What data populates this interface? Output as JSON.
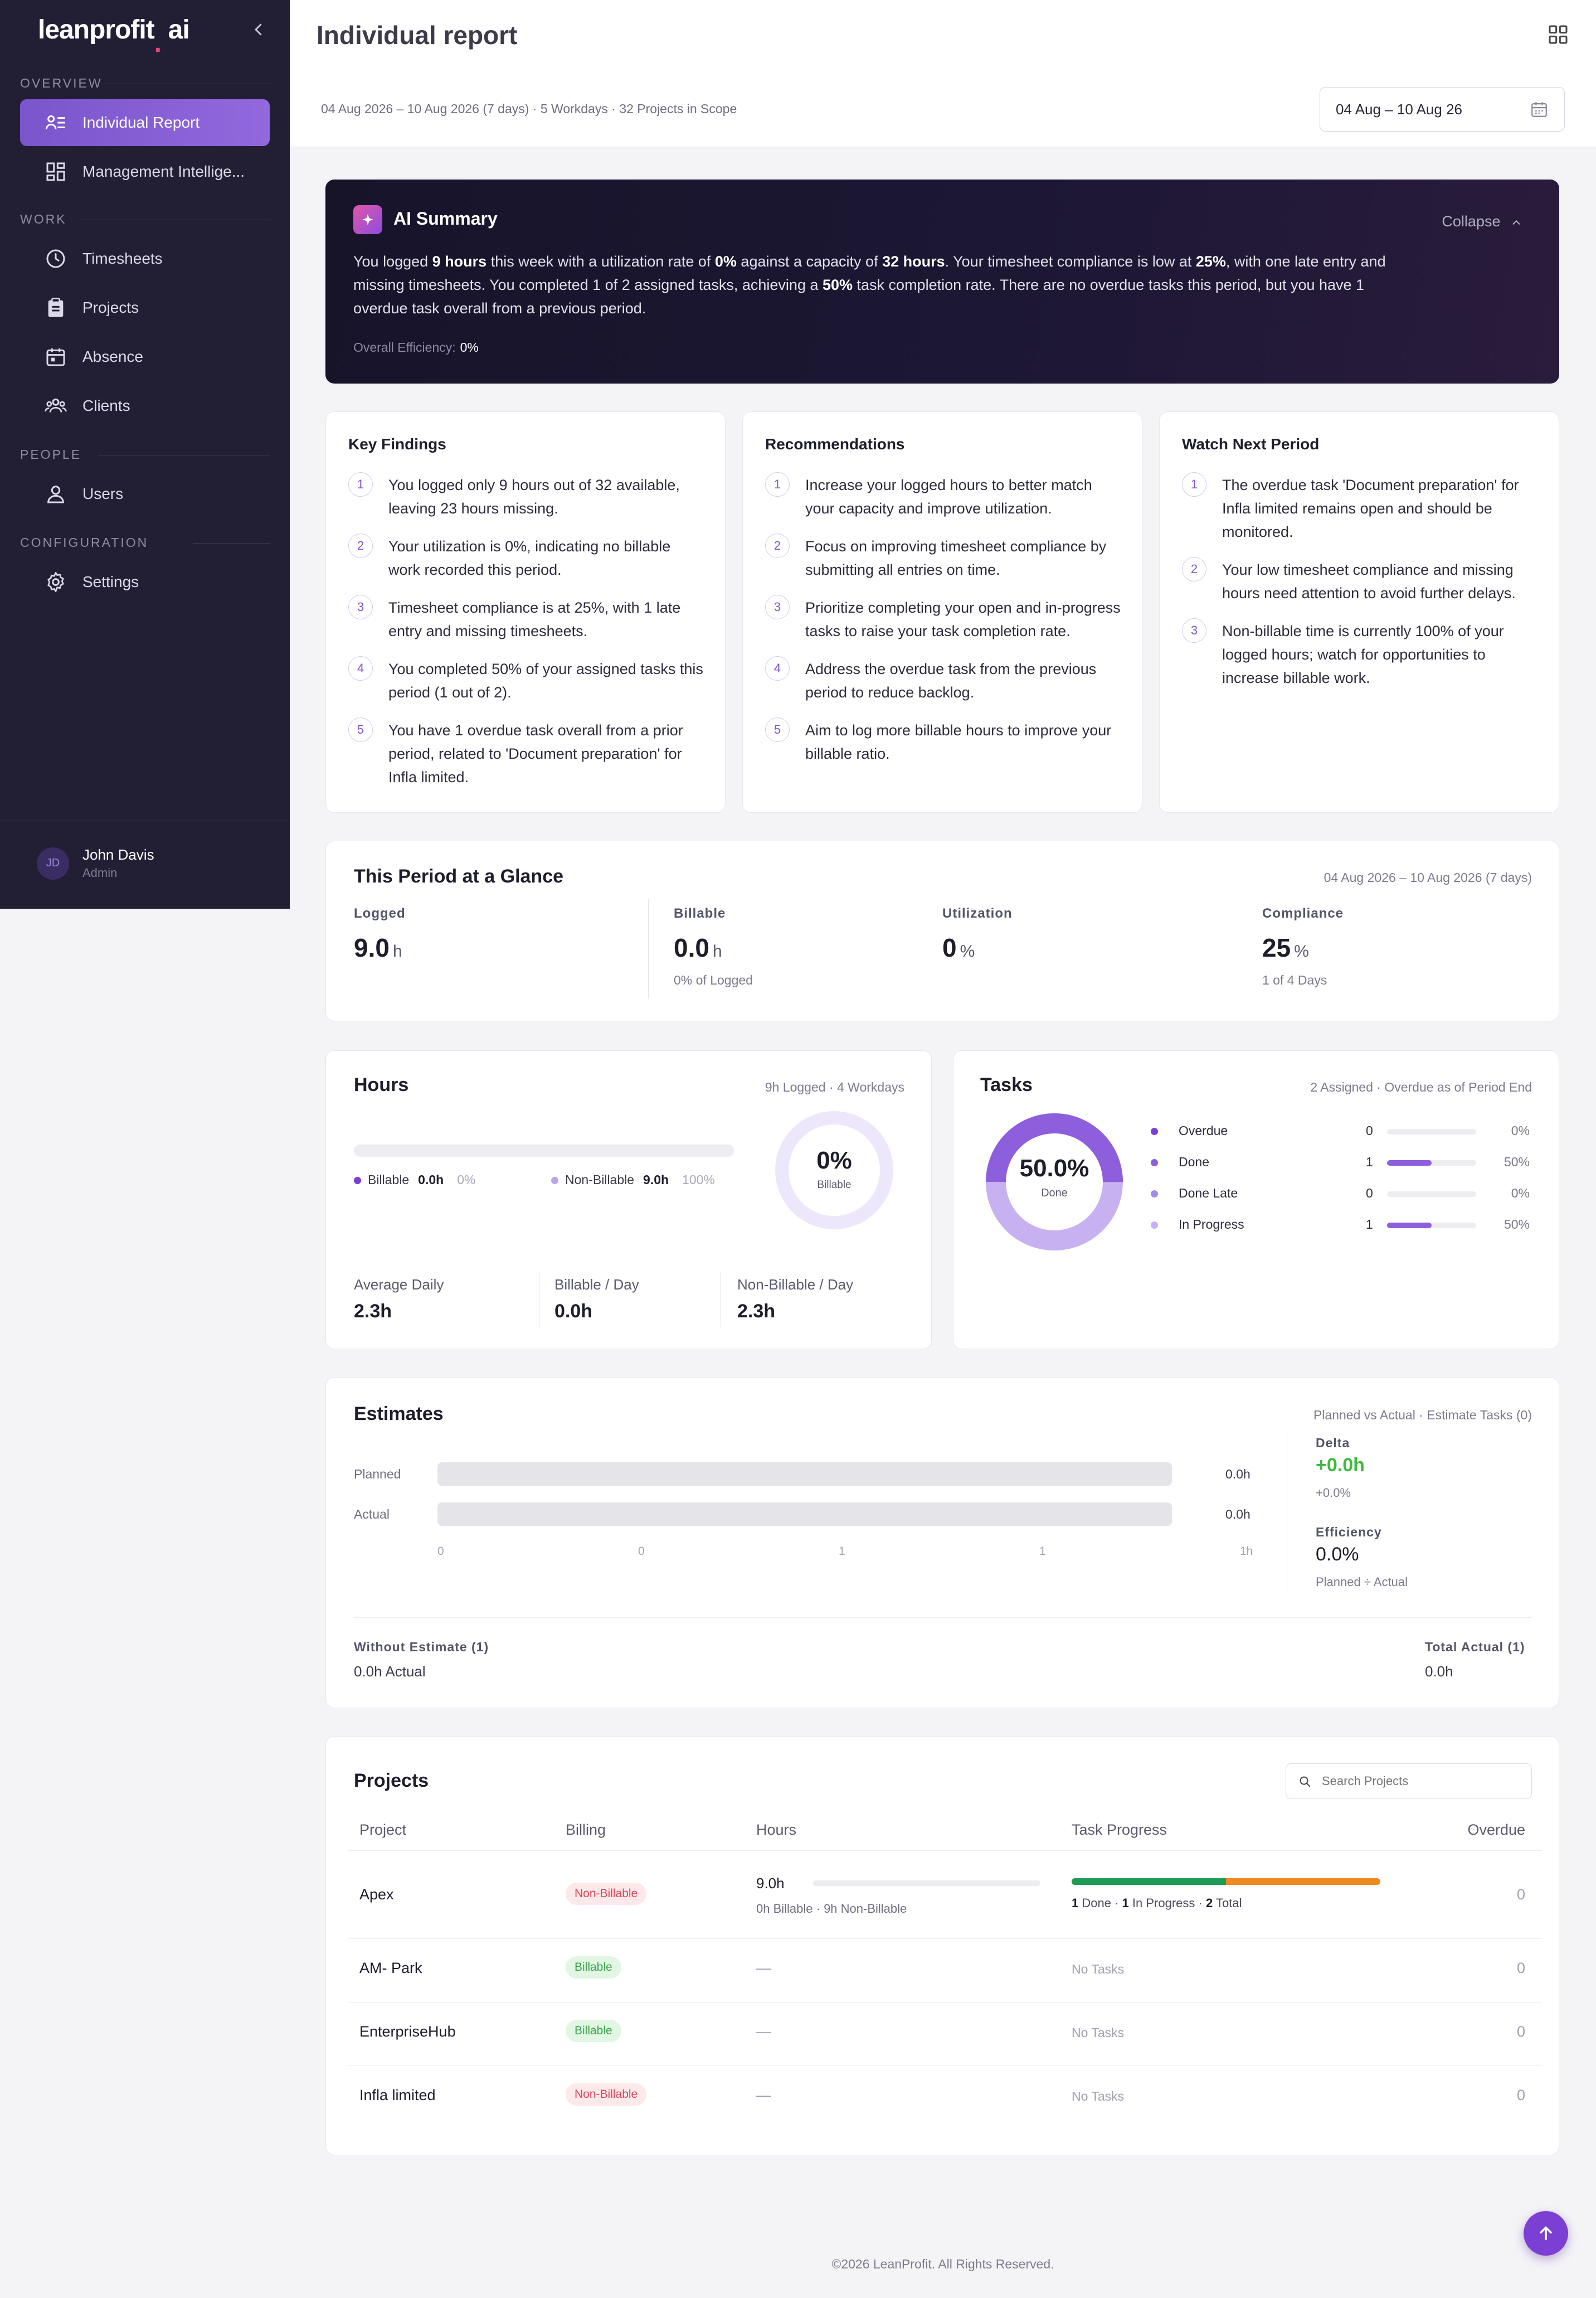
{
  "brand": {
    "name": "leanprofit",
    "dot": ".",
    "suffix": "ai"
  },
  "sidebar": {
    "sections": {
      "overview": "OVERVIEW",
      "work": "WORK",
      "people": "PEOPLE",
      "configuration": "CONFIGURATION"
    },
    "items": {
      "individual_report": "Individual Report",
      "management": "Management Intellige...",
      "timesheets": "Timesheets",
      "projects": "Projects",
      "absence": "Absence",
      "clients": "Clients",
      "users": "Users",
      "settings": "Settings"
    },
    "user": {
      "initials": "JD",
      "name": "John Davis",
      "role": "Admin"
    }
  },
  "header": {
    "title": "Individual report"
  },
  "subheader": {
    "meta": "04 Aug 2026 – 10 Aug 2026 (7 days) · 5 Workdays · 32 Projects in Scope",
    "date_range": "04 Aug – 10 Aug 26"
  },
  "ai_summary": {
    "title": "AI Summary",
    "collapse": "Collapse",
    "p1": "You logged ",
    "b1": "9 hours",
    "p2": " this week with a utilization rate of ",
    "b2": "0%",
    "p3": " against a capacity of ",
    "b3": "32 hours",
    "p4": ". Your timesheet compliance is low at ",
    "b4": "25%",
    "p5": ", with one late entry and missing timesheets. You completed 1 of 2 assigned tasks, achieving a ",
    "b5": "50%",
    "p6": " task completion rate. There are no overdue tasks this period, but you have 1 overdue task overall from a previous period.",
    "efficiency_label": "Overall Efficiency:",
    "efficiency_value": "0%"
  },
  "key_findings": {
    "title": "Key Findings",
    "items": [
      "You logged only 9 hours out of 32 available, leaving 23 hours missing.",
      "Your utilization is 0%, indicating no billable work recorded this period.",
      "Timesheet compliance is at 25%, with 1 late entry and missing timesheets.",
      "You completed 50% of your assigned tasks this period (1 out of 2).",
      "You have 1 overdue task overall from a prior period, related to 'Document preparation' for Infla limited."
    ]
  },
  "recommendations": {
    "title": "Recommendations",
    "items": [
      "Increase your logged hours to better match your capacity and improve utilization.",
      "Focus on improving timesheet compliance by submitting all entries on time.",
      "Prioritize completing your open and in-progress tasks to raise your task completion rate.",
      "Address the overdue task from the previous period to reduce backlog.",
      "Aim to log more billable hours to improve your billable ratio."
    ]
  },
  "watch_next": {
    "title": "Watch Next Period",
    "items": [
      "The overdue task 'Document preparation' for Infla limited remains open and should be monitored.",
      "Your low timesheet compliance and missing hours need attention to avoid further delays.",
      "Non-billable time is currently 100% of your logged hours; watch for opportunities to increase billable work."
    ]
  },
  "glance": {
    "title": "This Period at a Glance",
    "range": "04 Aug 2026 – 10 Aug 2026 (7 days)",
    "logged": {
      "label": "Logged",
      "value": "9.0",
      "unit": "h"
    },
    "billable": {
      "label": "Billable",
      "value": "0.0",
      "unit": "h",
      "sub": "0% of Logged"
    },
    "utilization": {
      "label": "Utilization",
      "value": "0",
      "unit": "%"
    },
    "compliance": {
      "label": "Compliance",
      "value": "25",
      "unit": "%",
      "sub": "1 of 4 Days"
    }
  },
  "hours": {
    "title": "Hours",
    "meta": "9h Logged · 4 Workdays",
    "billable_label": "Billable",
    "billable_value": "0.0h",
    "billable_pct": "0%",
    "nonbillable_label": "Non-Billable",
    "nonbillable_value": "9.0h",
    "nonbillable_pct": "100%",
    "billable_fraction": 0,
    "ring_value": "0%",
    "ring_label": "Billable",
    "avg_daily_label": "Average Daily",
    "avg_daily_value": "2.3h",
    "billable_day_label": "Billable / Day",
    "billable_day_value": "0.0h",
    "nonbillable_day_label": "Non-Billable / Day",
    "nonbillable_day_value": "2.3h"
  },
  "tasks": {
    "title": "Tasks",
    "meta": "2 Assigned · Overdue as of Period End",
    "donut_value": "50.0%",
    "donut_label": "Done",
    "rows": [
      {
        "name": "Overdue",
        "count": "0",
        "pct": "0%",
        "fraction": 0,
        "color": "#7b3fd6"
      },
      {
        "name": "Done",
        "count": "1",
        "pct": "50%",
        "fraction": 0.5,
        "color": "#8d5fdc"
      },
      {
        "name": "Done Late",
        "count": "0",
        "pct": "0%",
        "fraction": 0,
        "color": "#a68be6"
      },
      {
        "name": "In Progress",
        "count": "1",
        "pct": "50%",
        "fraction": 0.5,
        "color": "#c7b1f0"
      }
    ]
  },
  "estimates": {
    "title": "Estimates",
    "meta": "Planned vs Actual · Estimate Tasks (0)",
    "planned_label": "Planned",
    "planned_value": "0.0h",
    "actual_label": "Actual",
    "actual_value": "0.0h",
    "ticks": [
      "0",
      "0",
      "1",
      "1",
      "1h"
    ],
    "delta_label": "Delta",
    "delta_value": "+0.0h",
    "delta_sub": "+0.0%",
    "efficiency_label": "Efficiency",
    "efficiency_value": "0.0%",
    "efficiency_sub": "Planned ÷ Actual",
    "without_label": "Without Estimate (1)",
    "without_value": "0.0h Actual",
    "total_label": "Total Actual (1)",
    "total_value": "0.0h"
  },
  "projects": {
    "title": "Projects",
    "search_placeholder": "Search Projects",
    "columns": {
      "project": "Project",
      "billing": "Billing",
      "hours": "Hours",
      "progress": "Task Progress",
      "overdue": "Overdue"
    },
    "rows": [
      {
        "name": "Apex",
        "billing": "Non-Billable",
        "hours": "9.0h",
        "hours_sub": "0h Billable · 9h Non-Billable",
        "progress": {
          "done": "1",
          "done_label": "Done",
          "in_progress": "1",
          "in_progress_label": "In Progress",
          "total": "2",
          "total_label": "Total",
          "done_fraction": 0.5
        },
        "overdue": "0"
      },
      {
        "name": "AM- Park",
        "billing": "Billable",
        "hours": "—",
        "no_tasks": "No Tasks",
        "overdue": "0"
      },
      {
        "name": "EnterpriseHub",
        "billing": "Billable",
        "hours": "—",
        "no_tasks": "No Tasks",
        "overdue": "0"
      },
      {
        "name": "Infla limited",
        "billing": "Non-Billable",
        "hours": "—",
        "no_tasks": "No Tasks",
        "overdue": "0"
      }
    ]
  },
  "footer": "©2026 LeanProfit. All Rights Reserved.",
  "icons": [
    "chevron-left-icon",
    "report-icon",
    "dashboard-icon",
    "clock-icon",
    "clipboard-icon",
    "calendar-icon",
    "clients-icon",
    "user-icon",
    "gear-icon",
    "grid-icon",
    "sparkle-icon",
    "chevron-up-icon",
    "search-icon",
    "arrow-up-icon"
  ]
}
